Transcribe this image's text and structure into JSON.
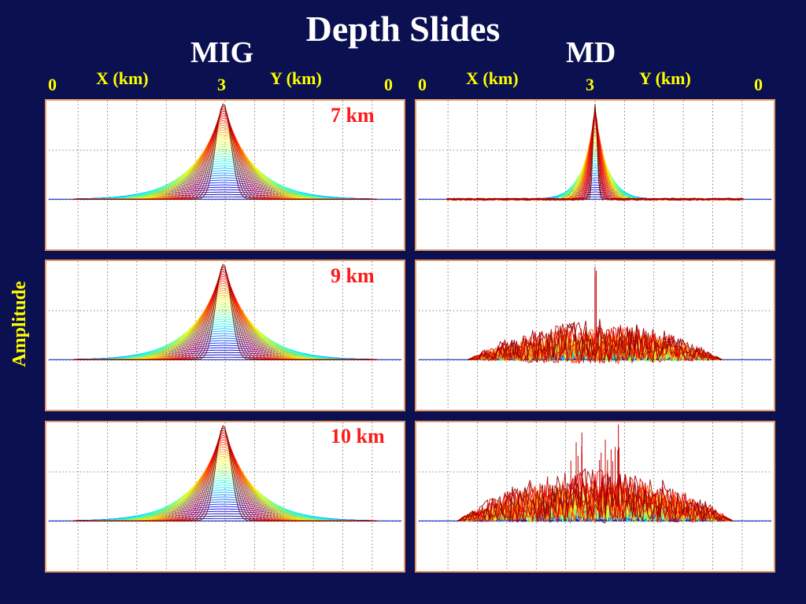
{
  "title": "Depth Slides",
  "ylabel": "Amplitude",
  "columns": [
    {
      "name": "MIG",
      "x_label": "X (km)",
      "y_label": "Y (km)",
      "ticks": [
        "0",
        "3",
        "0"
      ]
    },
    {
      "name": "MD",
      "x_label": "X (km)",
      "y_label": "Y (km)",
      "ticks": [
        "0",
        "3",
        "0"
      ]
    }
  ],
  "depths": [
    "7 km",
    "9 km",
    "10 km"
  ],
  "colors": {
    "background": "#0b1050",
    "title": "#ffffff",
    "axis_text": "#ffff00",
    "depth_text": "#ff1a1a",
    "panel_border": "#e69a6a",
    "grid": "#555555",
    "colormap": "jet"
  },
  "chart_data": [
    {
      "type": "line",
      "method": "MIG",
      "depth": "7 km",
      "pattern": "smooth",
      "peak": 1.0,
      "grid": true
    },
    {
      "type": "line",
      "method": "MD",
      "depth": "7 km",
      "pattern": "spike",
      "peak": 1.0,
      "grid": true
    },
    {
      "type": "line",
      "method": "MIG",
      "depth": "9 km",
      "pattern": "smooth",
      "peak": 1.0,
      "grid": true
    },
    {
      "type": "line",
      "method": "MD",
      "depth": "9 km",
      "pattern": "noisy",
      "peak": 1.0,
      "grid": true
    },
    {
      "type": "line",
      "method": "MIG",
      "depth": "10 km",
      "pattern": "smooth",
      "peak": 1.0,
      "grid": true
    },
    {
      "type": "line",
      "method": "MD",
      "depth": "10 km",
      "pattern": "noisy-strong",
      "peak": 1.0,
      "grid": true
    }
  ]
}
